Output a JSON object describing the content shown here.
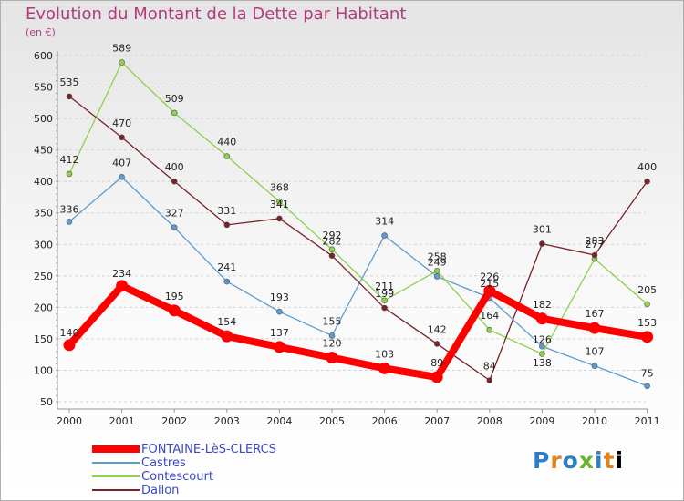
{
  "chart_data": {
    "type": "line",
    "title": "Evolution du Montant de la Dette par Habitant",
    "subtitle": "(en €)",
    "xlabel": "",
    "ylabel": "",
    "categories": [
      "2000",
      "2001",
      "2002",
      "2003",
      "2004",
      "2005",
      "2006",
      "2007",
      "2008",
      "2009",
      "2010",
      "2011"
    ],
    "ylim": [
      50,
      600
    ],
    "yticks": [
      50,
      100,
      150,
      200,
      250,
      300,
      350,
      400,
      450,
      500,
      550,
      600
    ],
    "series": [
      {
        "name": "FONTAINE-LèS-CLERCS",
        "color": "#ff0000",
        "values": [
          140,
          234,
          195,
          154,
          137,
          120,
          103,
          89,
          226,
          182,
          167,
          153
        ]
      },
      {
        "name": "Castres",
        "color": "#5f9bd0",
        "values": [
          336,
          407,
          327,
          241,
          193,
          155,
          314,
          249,
          215,
          138,
          107,
          75
        ]
      },
      {
        "name": "Contescourt",
        "color": "#8ed14a",
        "values": [
          412,
          589,
          509,
          440,
          368,
          292,
          211,
          258,
          164,
          126,
          277,
          205
        ]
      },
      {
        "name": "Dallon",
        "color": "#7a2128",
        "values": [
          535,
          470,
          400,
          331,
          341,
          282,
          199,
          142,
          84,
          301,
          283,
          400
        ]
      }
    ],
    "data_labels": [
      [
        "140",
        "234",
        "195",
        "154",
        "137",
        "120",
        "103",
        "89",
        "226",
        "182",
        "167",
        "153"
      ],
      [
        "336",
        "407",
        "327",
        "241",
        "193",
        "155",
        "314",
        "249",
        "215",
        "138",
        "107",
        "75"
      ],
      [
        "412",
        "589",
        "509",
        "440",
        "368",
        "292",
        "211",
        "258",
        "164",
        "126",
        "277",
        "205"
      ],
      [
        "535",
        "470",
        "400",
        "331",
        "341",
        "282",
        "199",
        "142",
        "84",
        "301",
        "283",
        "400"
      ]
    ],
    "legend": "bottom-left"
  },
  "logo": {
    "letters": [
      "P",
      "r",
      "o",
      "x",
      "i",
      "t",
      "i"
    ]
  }
}
